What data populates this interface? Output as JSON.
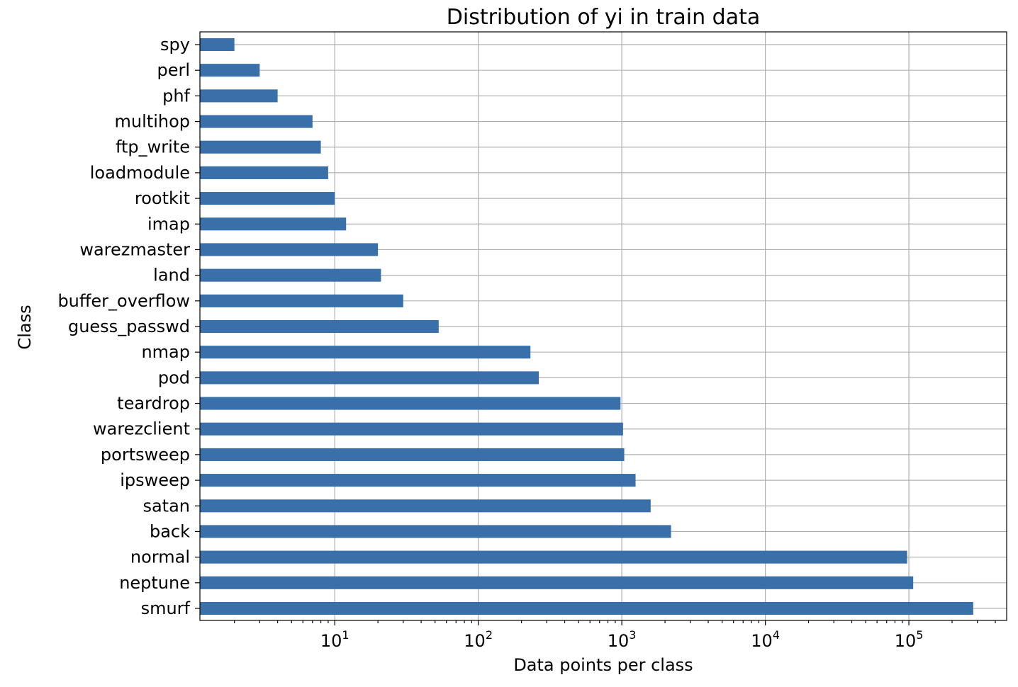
{
  "chart_data": {
    "type": "bar",
    "orientation": "horizontal",
    "title": "Distribution of yi in train data",
    "xlabel": "Data points per class",
    "ylabel": "Class",
    "xscale": "log",
    "xlim": [
      1.15,
      480000
    ],
    "grid": true,
    "bar_color": "#3a70aa",
    "xticks": [
      {
        "value": 10,
        "base": "10",
        "exp": "1"
      },
      {
        "value": 100,
        "base": "10",
        "exp": "2"
      },
      {
        "value": 1000,
        "base": "10",
        "exp": "3"
      },
      {
        "value": 10000,
        "base": "10",
        "exp": "4"
      },
      {
        "value": 100000,
        "base": "10",
        "exp": "5"
      }
    ],
    "categories": [
      "spy",
      "perl",
      "phf",
      "multihop",
      "ftp_write",
      "loadmodule",
      "rootkit",
      "imap",
      "warezmaster",
      "land",
      "buffer_overflow",
      "guess_passwd",
      "nmap",
      "pod",
      "teardrop",
      "warezclient",
      "portsweep",
      "ipsweep",
      "satan",
      "back",
      "normal",
      "neptune",
      "smurf"
    ],
    "values": [
      2,
      3,
      4,
      7,
      8,
      9,
      10,
      12,
      20,
      21,
      30,
      53,
      231,
      264,
      979,
      1020,
      1040,
      1247,
      1589,
      2203,
      97278,
      107201,
      280790
    ]
  }
}
